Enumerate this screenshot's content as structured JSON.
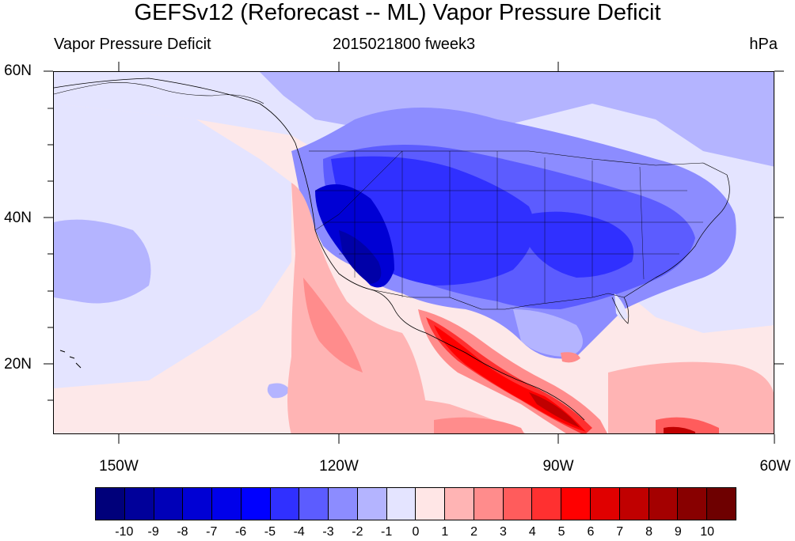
{
  "title": "GEFSv12 (Reforecast -- ML) Vapor Pressure Deficit",
  "subtitle_left": "Vapor Pressure Deficit",
  "subtitle_center": "2015021800 fweek3",
  "subtitle_right": "hPa",
  "lat_labels": [
    "60N",
    "40N",
    "20N"
  ],
  "lon_labels": [
    "150W",
    "120W",
    "90W",
    "60W"
  ],
  "colorbar": {
    "colors": [
      "#00007a",
      "#00009a",
      "#0000b8",
      "#0000d4",
      "#0000ea",
      "#0000ff",
      "#3030ff",
      "#5c5cff",
      "#8c8cff",
      "#b4b4ff",
      "#e4e4ff",
      "#ffe6e6",
      "#ffb4b4",
      "#ff8c8c",
      "#ff5c5c",
      "#ff3030",
      "#ff0000",
      "#e00000",
      "#c00000",
      "#a40000",
      "#880000",
      "#6e0000"
    ],
    "labels": [
      "-10",
      "-9",
      "-8",
      "-7",
      "-6",
      "-5",
      "-4",
      "-3",
      "-2",
      "-1",
      "0",
      "1",
      "2",
      "3",
      "4",
      "5",
      "6",
      "7",
      "8",
      "9",
      "10"
    ]
  }
}
